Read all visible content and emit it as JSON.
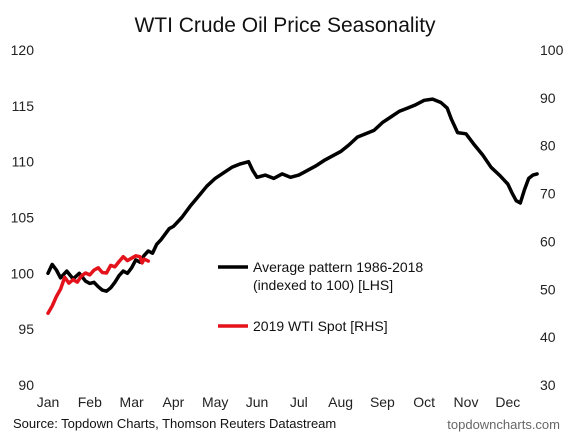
{
  "chart_data": {
    "type": "line",
    "title": "WTI Crude Oil Price Seasonality",
    "xlabel": "",
    "categories": [
      "Jan",
      "Feb",
      "Mar",
      "Apr",
      "May",
      "Jun",
      "Jul",
      "Aug",
      "Sep",
      "Oct",
      "Nov",
      "Dec"
    ],
    "y_left": {
      "ylim": [
        90,
        120
      ],
      "ticks": [
        "90",
        "95",
        "100",
        "105",
        "110",
        "115",
        "120"
      ]
    },
    "y_right": {
      "ylim": [
        30,
        100
      ],
      "ticks": [
        "30",
        "40",
        "50",
        "60",
        "70",
        "80",
        "90",
        "100"
      ]
    },
    "grid": false,
    "legend_position": "center",
    "series": [
      {
        "name": "Average pattern 1986-2018 (indexed to 100) [LHS]",
        "legend_lines": [
          "Average pattern 1986-2018",
          "(indexed to 100) [LHS]"
        ],
        "axis": "left",
        "color": "#000000",
        "points": [
          [
            0.0,
            100.0
          ],
          [
            0.1,
            100.8
          ],
          [
            0.2,
            100.3
          ],
          [
            0.3,
            99.6
          ],
          [
            0.45,
            100.2
          ],
          [
            0.6,
            99.5
          ],
          [
            0.75,
            100.0
          ],
          [
            0.9,
            99.3
          ],
          [
            1.0,
            99.1
          ],
          [
            1.1,
            99.2
          ],
          [
            1.2,
            98.8
          ],
          [
            1.3,
            98.5
          ],
          [
            1.4,
            98.4
          ],
          [
            1.5,
            98.7
          ],
          [
            1.6,
            99.2
          ],
          [
            1.7,
            99.8
          ],
          [
            1.8,
            100.2
          ],
          [
            1.9,
            100.0
          ],
          [
            2.0,
            100.5
          ],
          [
            2.1,
            101.2
          ],
          [
            2.2,
            101.0
          ],
          [
            2.3,
            101.6
          ],
          [
            2.4,
            102.0
          ],
          [
            2.5,
            101.8
          ],
          [
            2.6,
            102.6
          ],
          [
            2.7,
            103.0
          ],
          [
            2.8,
            103.5
          ],
          [
            2.9,
            104.0
          ],
          [
            3.0,
            104.2
          ],
          [
            3.2,
            105.0
          ],
          [
            3.4,
            106.0
          ],
          [
            3.6,
            106.9
          ],
          [
            3.8,
            107.8
          ],
          [
            4.0,
            108.5
          ],
          [
            4.2,
            109.0
          ],
          [
            4.4,
            109.5
          ],
          [
            4.6,
            109.8
          ],
          [
            4.8,
            110.0
          ],
          [
            4.9,
            109.2
          ],
          [
            5.0,
            108.6
          ],
          [
            5.2,
            108.8
          ],
          [
            5.4,
            108.5
          ],
          [
            5.6,
            108.9
          ],
          [
            5.8,
            108.6
          ],
          [
            6.0,
            108.8
          ],
          [
            6.2,
            109.2
          ],
          [
            6.4,
            109.6
          ],
          [
            6.6,
            110.1
          ],
          [
            6.8,
            110.5
          ],
          [
            7.0,
            110.9
          ],
          [
            7.2,
            111.5
          ],
          [
            7.4,
            112.2
          ],
          [
            7.6,
            112.5
          ],
          [
            7.8,
            112.8
          ],
          [
            8.0,
            113.5
          ],
          [
            8.2,
            114.0
          ],
          [
            8.4,
            114.5
          ],
          [
            8.6,
            114.8
          ],
          [
            8.8,
            115.1
          ],
          [
            9.0,
            115.5
          ],
          [
            9.2,
            115.6
          ],
          [
            9.4,
            115.3
          ],
          [
            9.55,
            114.8
          ],
          [
            9.65,
            113.8
          ],
          [
            9.8,
            112.6
          ],
          [
            10.0,
            112.5
          ],
          [
            10.2,
            111.5
          ],
          [
            10.4,
            110.6
          ],
          [
            10.6,
            109.5
          ],
          [
            10.8,
            108.8
          ],
          [
            11.0,
            108.0
          ],
          [
            11.1,
            107.2
          ],
          [
            11.2,
            106.5
          ],
          [
            11.3,
            106.3
          ],
          [
            11.4,
            107.5
          ],
          [
            11.5,
            108.5
          ],
          [
            11.6,
            108.8
          ],
          [
            11.7,
            108.9
          ]
        ]
      },
      {
        "name": "2019 WTI Spot [RHS]",
        "axis": "right",
        "color": "#e3121b",
        "points": [
          [
            0.0,
            45.0
          ],
          [
            0.1,
            46.5
          ],
          [
            0.2,
            48.5
          ],
          [
            0.3,
            50.0
          ],
          [
            0.4,
            52.5
          ],
          [
            0.5,
            51.3
          ],
          [
            0.6,
            52.0
          ],
          [
            0.7,
            51.5
          ],
          [
            0.8,
            52.8
          ],
          [
            0.9,
            53.4
          ],
          [
            1.0,
            53.0
          ],
          [
            1.1,
            54.0
          ],
          [
            1.2,
            54.5
          ],
          [
            1.3,
            53.5
          ],
          [
            1.4,
            53.4
          ],
          [
            1.5,
            55.0
          ],
          [
            1.6,
            54.7
          ],
          [
            1.7,
            55.8
          ],
          [
            1.8,
            56.8
          ],
          [
            1.9,
            56.0
          ],
          [
            2.0,
            56.5
          ],
          [
            2.1,
            57.0
          ],
          [
            2.2,
            56.8
          ],
          [
            2.25,
            55.5
          ],
          [
            2.3,
            56.3
          ],
          [
            2.4,
            55.9
          ]
        ]
      }
    ],
    "source": "Source: Topdown Charts, Thomson Reuters Datastream",
    "credit": "topdowncharts.com"
  }
}
